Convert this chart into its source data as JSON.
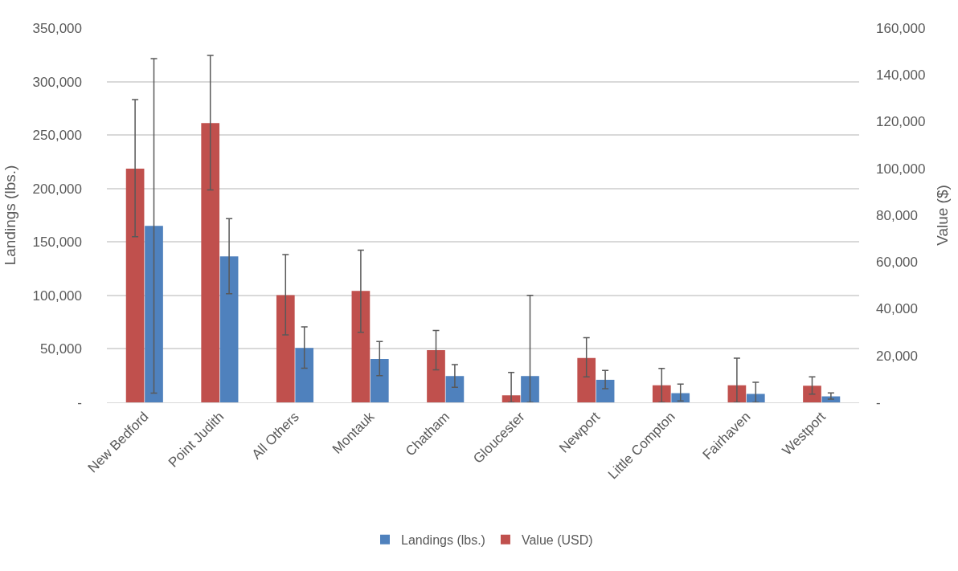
{
  "chart_data": {
    "type": "bar",
    "categories": [
      "New Bedford",
      "Point Judith",
      "All Others",
      "Montauk",
      "Chatham",
      "Gloucester",
      "Newport",
      "Little Compton",
      "Fairhaven",
      "Westport"
    ],
    "series": [
      {
        "name": "Landings (lbs.)",
        "color": "#4f81bd",
        "values": [
          165000,
          136500,
          50800,
          40600,
          24600,
          24600,
          21100,
          8600,
          7900,
          5600
        ],
        "errors": [
          [
            8600,
            321500
          ],
          [
            101500,
            171800
          ],
          [
            32000,
            70600
          ],
          [
            24900,
            56900
          ],
          [
            14000,
            35300
          ],
          [
            0,
            100000
          ],
          [
            12700,
            29900
          ],
          [
            1300,
            17000
          ],
          [
            0,
            18800
          ],
          [
            3000,
            8900
          ]
        ]
      },
      {
        "name": "Value (USD)",
        "color": "#c0504d",
        "axis": "y2",
        "values": [
          99900,
          119400,
          45800,
          47600,
          22300,
          3000,
          19000,
          7300,
          7300,
          7100
        ],
        "errors": [
          [
            70800,
            129400
          ],
          [
            90800,
            148300
          ],
          [
            28800,
            63200
          ],
          [
            30000,
            65100
          ],
          [
            13900,
            30700
          ],
          [
            0,
            12800
          ],
          [
            10900,
            27600
          ],
          [
            0,
            14500
          ],
          [
            0,
            18900
          ],
          [
            3500,
            10900
          ]
        ]
      }
    ],
    "ylabel": "Landings (lbs.)",
    "y2label": "Value ($)",
    "ylim": [
      0,
      350000
    ],
    "yticks": [
      {
        "value": 0,
        "label": "-"
      },
      {
        "value": 50000,
        "label": "50,000"
      },
      {
        "value": 100000,
        "label": "100,000"
      },
      {
        "value": 150000,
        "label": "150,000"
      },
      {
        "value": 200000,
        "label": "200,000"
      },
      {
        "value": 250000,
        "label": "250,000"
      },
      {
        "value": 300000,
        "label": "300,000"
      },
      {
        "value": 350000,
        "label": "350,000"
      }
    ],
    "y2lim": [
      0,
      160000
    ],
    "y2ticks": [
      {
        "value": 0,
        "label": "-"
      },
      {
        "value": 20000,
        "label": "20,000"
      },
      {
        "value": 40000,
        "label": "40,000"
      },
      {
        "value": 60000,
        "label": "60,000"
      },
      {
        "value": 80000,
        "label": "80,000"
      },
      {
        "value": 100000,
        "label": "100,000"
      },
      {
        "value": 120000,
        "label": "120,000"
      },
      {
        "value": 140000,
        "label": "140,000"
      },
      {
        "value": 160000,
        "label": "160,000"
      }
    ],
    "grid": "y",
    "legend": "bottom"
  }
}
